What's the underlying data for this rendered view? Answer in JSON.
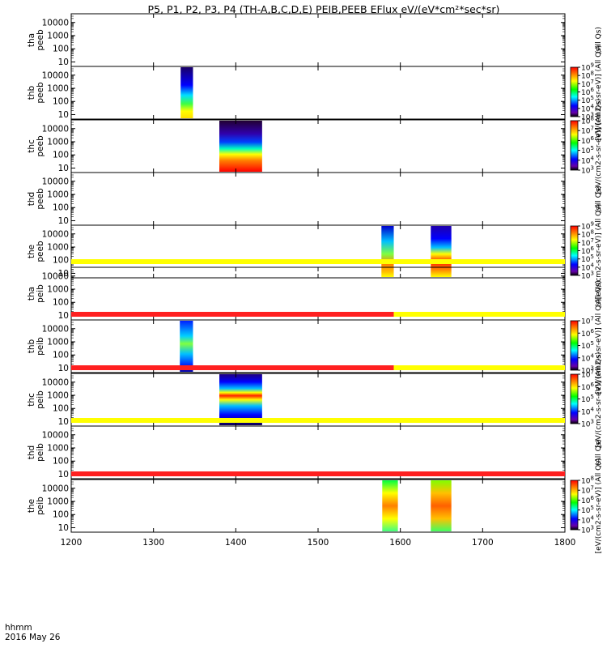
{
  "title": "P5, P1, P2, P3, P4 (TH-A,B,C,D,E) PEIB,PEEB EFlux eV/(eV*cm²*sec*sr)",
  "footer": {
    "time_label": "hhmm",
    "date_label": "2016 May 26"
  },
  "chart_data": {
    "type": "heatmap",
    "x": {
      "ticks": [
        "1200",
        "1300",
        "1400",
        "1500",
        "1600",
        "1700",
        "1800"
      ],
      "range": [
        1200,
        1800
      ]
    },
    "y": {
      "scale": "log",
      "range": [
        7,
        30000
      ],
      "ticks": [
        "10",
        "100",
        "1000",
        "10000"
      ]
    },
    "panels": [
      {
        "id": "tha-peeb",
        "label": [
          "tha",
          "peeb"
        ],
        "bursts": [],
        "colorbar": null,
        "side_label": "(All Qs)",
        "side_label_sup": ""
      },
      {
        "id": "thb-peeb",
        "label": [
          "thb",
          "peeb"
        ],
        "bursts": [
          {
            "start": 1333,
            "end": 1348,
            "kind": "thb-e"
          }
        ],
        "colorbar": {
          "ticks": [
            "10",
            "10",
            "10",
            "10",
            "10",
            "10",
            "10"
          ],
          "exps": [
            "3",
            "4",
            "5",
            "6",
            "7",
            "8",
            "9"
          ]
        },
        "side_label": "[eV/(cm2-s-sr-eV)] (All Qs)"
      },
      {
        "id": "thc-peeb",
        "label": [
          "thc",
          "peeb"
        ],
        "bursts": [
          {
            "start": 1380,
            "end": 1432,
            "kind": "thc-e"
          }
        ],
        "colorbar": {
          "ticks": [
            "10",
            "10",
            "10",
            "10",
            "10",
            "10"
          ],
          "exps": [
            "3",
            "4",
            "5",
            "6",
            "7",
            "8"
          ]
        },
        "side_label": "[eV/(cm2-s-sr-eV)] (All Qs)"
      },
      {
        "id": "thd-peeb",
        "label": [
          "thd",
          "peeb"
        ],
        "bursts": [],
        "colorbar": null,
        "side_label": "(All Qs)"
      },
      {
        "id": "the-peeb",
        "label": [
          "the",
          "peeb"
        ],
        "bursts": [
          {
            "start": 1577,
            "end": 1592,
            "kind": "the-e1"
          },
          {
            "start": 1637,
            "end": 1662,
            "kind": "the-e2"
          }
        ],
        "colorbar": {
          "ticks": [
            "10",
            "10",
            "10",
            "10",
            "10",
            "10",
            "10"
          ],
          "exps": [
            "3",
            "4",
            "5",
            "6",
            "7",
            "8",
            "9"
          ]
        },
        "side_label": "[eV/(cm2-s-sr-eV)] (All Qs)"
      },
      {
        "id": "tha-peib",
        "label": [
          "tha",
          "peib"
        ],
        "bursts": [],
        "colorbar": null,
        "side_label": "(All Qs)",
        "bar_above": [
          {
            "from": 1200,
            "to": 1800,
            "color": "yellow"
          }
        ]
      },
      {
        "id": "thb-peib",
        "label": [
          "thb",
          "peib"
        ],
        "bursts": [
          {
            "start": 1332,
            "end": 1348,
            "kind": "thb-i"
          }
        ],
        "colorbar": {
          "ticks": [
            "10",
            "10",
            "10",
            "10",
            "10"
          ],
          "exps": [
            "3",
            "4",
            "5",
            "6",
            "7"
          ]
        },
        "side_label": "[eV/(cm2-s-sr-eV)] (All Qs)",
        "bar_above": [
          {
            "from": 1200,
            "to": 1592,
            "color": "red"
          },
          {
            "from": 1592,
            "to": 1800,
            "color": "yellow"
          }
        ]
      },
      {
        "id": "thc-peib",
        "label": [
          "thc",
          "peib"
        ],
        "bursts": [
          {
            "start": 1380,
            "end": 1432,
            "kind": "thc-i"
          }
        ],
        "colorbar": {
          "ticks": [
            "10",
            "10",
            "10",
            "10",
            "10"
          ],
          "exps": [
            "3",
            "4",
            "5",
            "6",
            "7"
          ]
        },
        "side_label": "[eV/(cm2-s-sr-eV)] (All Qs)",
        "bar_above": [
          {
            "from": 1200,
            "to": 1592,
            "color": "red"
          },
          {
            "from": 1592,
            "to": 1800,
            "color": "yellow"
          }
        ]
      },
      {
        "id": "thd-peib",
        "label": [
          "thd",
          "peib"
        ],
        "bursts": [],
        "colorbar": null,
        "side_label": "(All Qs)",
        "bar_above": [
          {
            "from": 1200,
            "to": 1800,
            "color": "yellow"
          }
        ]
      },
      {
        "id": "the-peib",
        "label": [
          "the",
          "peib"
        ],
        "bursts": [
          {
            "start": 1578,
            "end": 1597,
            "kind": "the-i1"
          },
          {
            "start": 1637,
            "end": 1662,
            "kind": "the-i2"
          }
        ],
        "colorbar": {
          "ticks": [
            "10",
            "10",
            "10",
            "10",
            "10",
            "10"
          ],
          "exps": [
            "3",
            "4",
            "5",
            "6",
            "7",
            "8"
          ]
        },
        "side_label": "[eV/(cm2-s-sr-eV)] (All Qs)",
        "bar_above": [
          {
            "from": 1200,
            "to": 1800,
            "color": "red"
          }
        ]
      }
    ]
  }
}
